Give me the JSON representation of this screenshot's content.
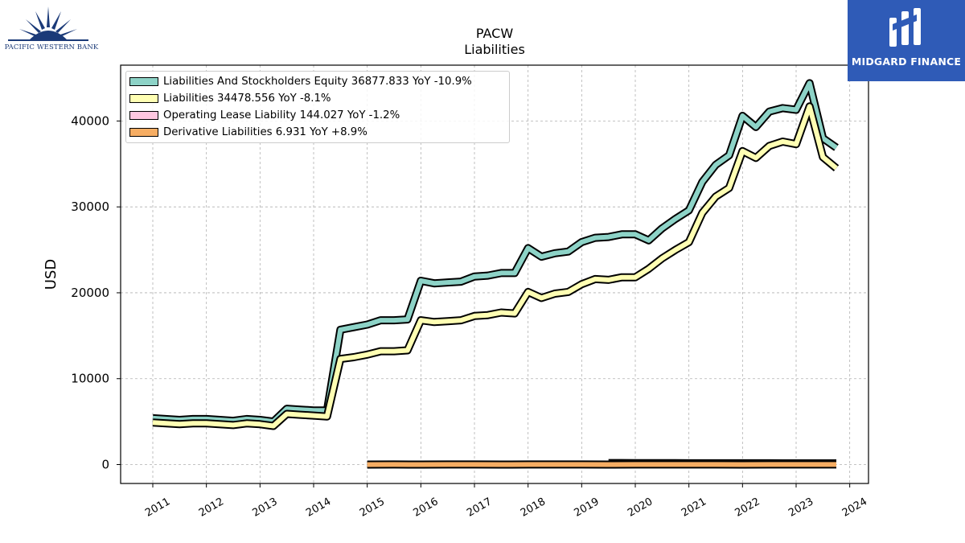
{
  "branding": {
    "left_logo_text": "PACIFIC WESTERN BANK",
    "right_logo_text": "MIDGARD FINANCE",
    "right_logo_color": "#2f5bb7"
  },
  "chart_data": {
    "type": "line",
    "title": "PACW",
    "subtitle": "Liabilities",
    "ylabel": "USD",
    "xlabel": "",
    "ylim": [
      -2200,
      46500
    ],
    "xlim": [
      2010.4,
      2024.35
    ],
    "yticks": [
      0,
      10000,
      20000,
      30000,
      40000
    ],
    "xticks": [
      "2011",
      "2012",
      "2013",
      "2014",
      "2015",
      "2016",
      "2017",
      "2018",
      "2019",
      "2020",
      "2021",
      "2022",
      "2023",
      "2024"
    ],
    "grid": true,
    "legend_position": "top-left",
    "legend": [
      "Liabilities And Stockholders Equity  36877.833 YoY -10.9%",
      "Liabilities  34478.556 YoY -8.1%",
      "Operating Lease Liability  144.027 YoY -1.2%",
      "Derivative Liabilities  6.931 YoY +8.9%"
    ],
    "series": [
      {
        "name": "Liabilities And Stockholders Equity",
        "color": "#8dd3c7",
        "x": [
          2011.0,
          2011.5,
          2011.75,
          2012.0,
          2012.5,
          2012.75,
          2013.0,
          2013.25,
          2013.5,
          2013.75,
          2014.0,
          2014.25,
          2014.5,
          2014.75,
          2015.0,
          2015.25,
          2015.5,
          2015.75,
          2016.0,
          2016.25,
          2016.5,
          2016.75,
          2017.0,
          2017.25,
          2017.5,
          2017.75,
          2018.0,
          2018.25,
          2018.5,
          2018.75,
          2019.0,
          2019.25,
          2019.5,
          2019.75,
          2020.0,
          2020.25,
          2020.5,
          2020.75,
          2021.0,
          2021.25,
          2021.5,
          2021.75,
          2022.0,
          2022.25,
          2022.5,
          2022.75,
          2023.0,
          2023.25,
          2023.5,
          2023.75
        ],
        "values": [
          5400,
          5200,
          5300,
          5300,
          5100,
          5300,
          5200,
          5000,
          6500,
          6400,
          6300,
          6300,
          15700,
          16000,
          16300,
          16800,
          16800,
          16900,
          21400,
          21100,
          21200,
          21300,
          21900,
          22000,
          22300,
          22300,
          25200,
          24200,
          24600,
          24800,
          25900,
          26400,
          26500,
          26800,
          26800,
          26100,
          27500,
          28600,
          29600,
          32900,
          34900,
          36000,
          40600,
          39300,
          41100,
          41500,
          41300,
          44400,
          38000,
          36900
        ]
      },
      {
        "name": "Liabilities",
        "color": "#ffffb3",
        "x": [
          2011.0,
          2011.5,
          2011.75,
          2012.0,
          2012.5,
          2012.75,
          2013.0,
          2013.25,
          2013.5,
          2013.75,
          2014.0,
          2014.25,
          2014.5,
          2014.75,
          2015.0,
          2015.25,
          2015.5,
          2015.75,
          2016.0,
          2016.25,
          2016.5,
          2016.75,
          2017.0,
          2017.25,
          2017.5,
          2017.75,
          2018.0,
          2018.25,
          2018.5,
          2018.75,
          2019.0,
          2019.25,
          2019.5,
          2019.75,
          2020.0,
          2020.25,
          2020.5,
          2020.75,
          2021.0,
          2021.25,
          2021.5,
          2021.75,
          2022.0,
          2022.25,
          2022.5,
          2022.75,
          2023.0,
          2023.25,
          2023.5,
          2023.75
        ],
        "values": [
          4900,
          4700,
          4800,
          4800,
          4600,
          4800,
          4700,
          4500,
          5900,
          5800,
          5700,
          5600,
          12300,
          12500,
          12800,
          13200,
          13200,
          13300,
          16800,
          16600,
          16700,
          16800,
          17300,
          17400,
          17700,
          17600,
          20100,
          19400,
          19900,
          20100,
          21000,
          21600,
          21500,
          21800,
          21800,
          22800,
          24000,
          25000,
          25900,
          29300,
          31200,
          32200,
          36500,
          35700,
          37100,
          37600,
          37300,
          41700,
          35800,
          34500
        ]
      },
      {
        "name": "Operating Lease Liability",
        "color": "#ffc7e0",
        "x": [
          2019.5,
          2019.75,
          2020.0,
          2020.25,
          2020.5,
          2020.75,
          2021.0,
          2021.25,
          2021.5,
          2021.75,
          2022.0,
          2022.25,
          2022.5,
          2022.75,
          2023.0,
          2023.25,
          2023.5,
          2023.75
        ],
        "values": [
          180,
          175,
          170,
          165,
          160,
          158,
          155,
          152,
          150,
          150,
          149,
          148,
          147,
          146,
          146,
          145,
          144.5,
          144.027
        ]
      },
      {
        "name": "Derivative Liabilities",
        "color": "#f6ad63",
        "x": [
          2015.0,
          2015.5,
          2016.0,
          2016.5,
          2017.0,
          2017.5,
          2018.0,
          2018.5,
          2019.0,
          2019.5,
          2020.0,
          2020.5,
          2021.0,
          2021.5,
          2022.0,
          2022.5,
          2023.0,
          2023.5,
          2023.75
        ],
        "values": [
          5,
          6,
          5,
          7,
          6,
          5,
          6,
          7,
          6,
          5,
          8,
          7,
          6,
          6,
          5,
          6,
          7,
          6.5,
          6.931
        ]
      }
    ]
  }
}
